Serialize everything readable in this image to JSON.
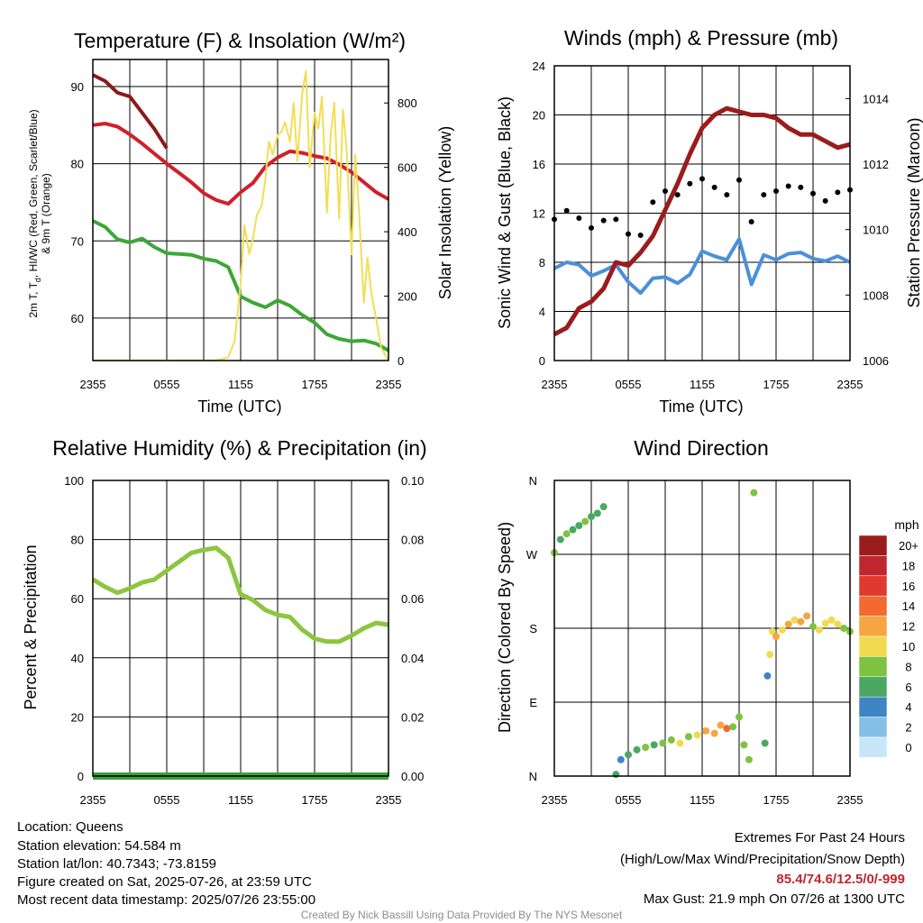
{
  "chart_data": [
    {
      "type": "line",
      "title": "Temperature (F) & Insolation (W/m²)",
      "xlabel": "Time (UTC)",
      "ylabel": "2m T, Td, HI/WC (Red, Green, Scarlet/Blue) & 9m T (Orange)",
      "ylabel_line1": "2m T, T",
      "ylabel_sub": "d",
      "ylabel_rest": ", HI/WC (Red, Green, Scarlet/Blue)",
      "ylabel_line2": "& 9m T (Orange)",
      "y2label": "Solar Insolation (Yellow)",
      "x_ticks": [
        "2355",
        "0555",
        "1155",
        "1755",
        "2355"
      ],
      "xlim": [
        0,
        24
      ],
      "ylim": [
        54.5,
        93.5
      ],
      "y_ticks": [
        60,
        70,
        80,
        90
      ],
      "y2lim": [
        0,
        935
      ],
      "y2_ticks": [
        0,
        200,
        400,
        600,
        800
      ],
      "grid": true,
      "series": [
        {
          "color": "#d0202a",
          "axis": "left",
          "x": [
            0,
            1,
            2,
            3,
            4,
            5,
            6,
            7,
            8,
            9,
            10,
            11,
            12,
            13,
            14,
            15,
            16,
            17,
            18,
            19,
            20,
            21,
            22,
            23,
            24
          ],
          "y": [
            85.0,
            85.2,
            84.8,
            83.8,
            82.6,
            81.3,
            80.0,
            78.8,
            77.6,
            76.2,
            75.3,
            74.8,
            76.3,
            77.5,
            79.6,
            80.8,
            81.6,
            81.4,
            81.0,
            80.7,
            79.9,
            78.9,
            77.6,
            76.3,
            75.4
          ]
        },
        {
          "color": "#8b1a1a",
          "axis": "left",
          "x": [
            0,
            1,
            2,
            3,
            4,
            5,
            6
          ],
          "y": [
            91.5,
            90.7,
            89.2,
            88.7,
            86.6,
            84.5,
            82.0
          ]
        },
        {
          "color": "#3da736",
          "axis": "left",
          "x": [
            0,
            1,
            2,
            3,
            4,
            5,
            6,
            7,
            8,
            9,
            10,
            11,
            12,
            13,
            14,
            15,
            16,
            17,
            18,
            19,
            20,
            21,
            22,
            23,
            24
          ],
          "y": [
            72.6,
            71.8,
            70.2,
            69.8,
            70.3,
            69.2,
            68.4,
            68.3,
            68.2,
            67.7,
            67.4,
            66.6,
            62.8,
            62.0,
            61.4,
            62.3,
            61.6,
            60.4,
            59.4,
            57.9,
            57.3,
            57.0,
            57.1,
            56.7,
            55.8
          ]
        },
        {
          "color": "#f2de55",
          "axis": "right",
          "x": [
            0,
            10,
            11,
            11.5,
            12,
            12.3,
            12.7,
            13,
            13.3,
            13.7,
            14,
            14.3,
            14.6,
            15,
            15.3,
            15.6,
            16,
            16.3,
            16.6,
            17,
            17.3,
            17.6,
            18,
            18.3,
            18.6,
            19,
            19.3,
            19.6,
            20,
            20.3,
            20.6,
            21,
            21.3,
            21.6,
            22,
            22.3,
            22.6,
            23,
            23.4,
            24
          ],
          "y": [
            0,
            0,
            10,
            60,
            240,
            420,
            330,
            380,
            450,
            480,
            560,
            680,
            640,
            700,
            710,
            740,
            680,
            800,
            620,
            830,
            900,
            600,
            770,
            720,
            820,
            460,
            700,
            800,
            440,
            780,
            660,
            330,
            640,
            470,
            180,
            320,
            210,
            130,
            40,
            0
          ]
        }
      ]
    },
    {
      "type": "line",
      "title": "Winds (mph) & Pressure (mb)",
      "xlabel": "Time (UTC)",
      "ylabel": "Sonic Wind & Gust (Blue, Black)",
      "y2label": "Station Pressure (Maroon)",
      "x_ticks": [
        "2355",
        "0555",
        "1155",
        "1755",
        "2355"
      ],
      "xlim": [
        0,
        24
      ],
      "ylim": [
        0,
        24
      ],
      "y_ticks": [
        0,
        4,
        8,
        12,
        16,
        20,
        24
      ],
      "y2lim": [
        1006,
        1015
      ],
      "y2_ticks": [
        1006,
        1008,
        1010,
        1012,
        1014
      ],
      "grid": true,
      "series": [
        {
          "color": "#4a90d9",
          "axis": "left",
          "x": [
            0,
            1,
            2,
            3,
            4,
            5,
            6,
            7,
            8,
            9,
            10,
            11,
            12,
            13,
            14,
            15,
            16,
            17,
            18,
            19,
            20,
            21,
            22,
            23,
            24
          ],
          "y": [
            7.5,
            8.0,
            7.8,
            6.9,
            7.3,
            7.8,
            6.4,
            5.5,
            6.7,
            6.8,
            6.3,
            7.0,
            8.9,
            8.5,
            8.2,
            9.9,
            6.2,
            8.6,
            8.2,
            8.7,
            8.8,
            8.3,
            8.1,
            8.5,
            8.0
          ]
        },
        {
          "color": "#000000",
          "axis": "left",
          "x": [
            0,
            1,
            2,
            3,
            4,
            5,
            6,
            7,
            8,
            9,
            10,
            11,
            12,
            13,
            14,
            15,
            16,
            17,
            18,
            19,
            20,
            21,
            22,
            23,
            24
          ],
          "y": [
            11.5,
            12.2,
            11.6,
            10.8,
            11.4,
            11.5,
            10.3,
            10.2,
            12.9,
            13.8,
            13.5,
            14.4,
            14.8,
            14.1,
            13.5,
            14.7,
            11.3,
            13.5,
            13.8,
            14.2,
            14.1,
            13.6,
            13.0,
            13.7,
            13.9
          ]
        },
        {
          "color": "#9b1c1c",
          "axis": "right",
          "x": [
            0,
            1,
            2,
            3,
            4,
            5,
            6,
            7,
            8,
            9,
            10,
            11,
            12,
            13,
            14,
            15,
            16,
            17,
            18,
            19,
            20,
            21,
            22,
            23,
            24
          ],
          "y": [
            1006.8,
            1007.0,
            1007.6,
            1007.8,
            1008.2,
            1009.0,
            1008.9,
            1009.3,
            1009.8,
            1010.6,
            1011.4,
            1012.3,
            1013.1,
            1013.5,
            1013.7,
            1013.6,
            1013.5,
            1013.5,
            1013.4,
            1013.1,
            1012.9,
            1012.9,
            1012.7,
            1012.5,
            1012.6
          ]
        }
      ]
    },
    {
      "type": "line",
      "title": "Relative Humidity (%) & Precipitation (in)",
      "ylabel": "Percent & Precipitation",
      "x_ticks": [
        "2355",
        "0555",
        "1155",
        "1755",
        "2355"
      ],
      "xlim": [
        0,
        24
      ],
      "ylim": [
        0,
        100
      ],
      "y_ticks": [
        0,
        20,
        40,
        60,
        80,
        100
      ],
      "y2lim": [
        0,
        0.1
      ],
      "y2_ticks": [
        "0.00",
        "0.02",
        "0.04",
        "0.06",
        "0.08",
        "0.10"
      ],
      "grid": true,
      "series": [
        {
          "color": "#8cc63f",
          "axis": "left",
          "x": [
            0,
            1,
            2,
            3,
            4,
            5,
            6,
            7,
            8,
            9,
            10,
            11,
            12,
            13,
            14,
            15,
            16,
            17,
            18,
            19,
            20,
            21,
            22,
            23,
            24
          ],
          "y": [
            66.5,
            64.0,
            62.0,
            63.5,
            65.5,
            66.5,
            69.5,
            72.5,
            75.5,
            76.5,
            77.2,
            73.8,
            61.5,
            59.5,
            56.2,
            54.5,
            53.8,
            49.5,
            46.5,
            45.5,
            45.5,
            47.5,
            50.0,
            51.8,
            51.2
          ]
        },
        {
          "color": "#3c9f3c",
          "axis": "right",
          "x": [
            0,
            24
          ],
          "y": [
            0,
            0
          ]
        }
      ]
    },
    {
      "type": "scatter",
      "title": "Wind Direction",
      "ylabel": "Direction (Colored By Speed)",
      "x_ticks": [
        "2355",
        "0555",
        "1155",
        "1755",
        "2355"
      ],
      "xlim": [
        0,
        24
      ],
      "y_ticks": [
        "N",
        "E",
        "S",
        "W",
        "N"
      ],
      "ylim": [
        0,
        360
      ],
      "grid": true,
      "legend_title": "mph",
      "legend": [
        "20+",
        "18",
        "16",
        "14",
        "12",
        "10",
        "8",
        "6",
        "4",
        "2",
        "0"
      ],
      "colors": [
        "#9b1c1c",
        "#c0262e",
        "#e03a2f",
        "#f26a2e",
        "#f7a541",
        "#f1da4e",
        "#7fc241",
        "#4aa862",
        "#3f85c4",
        "#84bfe8",
        "#c8e6f7"
      ],
      "x": [
        0,
        0.5,
        1.0,
        1.5,
        2.0,
        2.5,
        3.0,
        3.5,
        4.0,
        5.0,
        5.4,
        6.0,
        6.7,
        7.4,
        8.1,
        8.8,
        9.5,
        10.2,
        10.9,
        11.6,
        12.3,
        13.0,
        13.5,
        14.0,
        14.5,
        15.0,
        15.4,
        15.8,
        16.2,
        17.1,
        17.3,
        17.5,
        17.7,
        18.0,
        18.5,
        19.0,
        19.5,
        20.0,
        20.5,
        21.0,
        21.5,
        22.0,
        22.5,
        23.0,
        23.5,
        24.0
      ],
      "y": [
        272,
        288,
        295,
        300,
        305,
        310,
        316,
        320,
        328,
        2,
        20,
        26,
        32,
        35,
        38,
        40,
        44,
        40,
        48,
        50,
        55,
        52,
        62,
        58,
        60,
        72,
        38,
        20,
        345,
        40,
        122,
        148,
        176,
        170,
        178,
        185,
        190,
        188,
        195,
        182,
        178,
        186,
        190,
        185,
        180,
        176
      ],
      "speeds": [
        7,
        6,
        7,
        6,
        6,
        7,
        6,
        6,
        6,
        5,
        4,
        5,
        6,
        7,
        6,
        7,
        7,
        10,
        8,
        10,
        12,
        12,
        12,
        13,
        8,
        7,
        7,
        7,
        7,
        5,
        3,
        9,
        10,
        11,
        9,
        11,
        10,
        11,
        12,
        8,
        9,
        10,
        9,
        9,
        8,
        7
      ]
    }
  ],
  "footer": {
    "location": "Location: Queens",
    "elevation": "Station elevation: 54.584 m",
    "latlon": "Station lat/lon: 40.7343; -73.8159",
    "created": "Figure created on Sat, 2025-07-26, at 23:59 UTC",
    "recent": "Most recent data timestamp: 2025/07/26 23:55:00",
    "extremes_title": "Extremes For Past 24 Hours",
    "extremes_sub": "(High/Low/Max Wind/Precipitation/Snow Depth)",
    "extremes_values": "85.4/74.6/12.5/0/-999",
    "max_gust": "Max Gust: 21.9 mph On 07/26 at 1300 UTC",
    "credit": "Created By Nick Bassill Using Data Provided By The NYS Mesonet"
  }
}
